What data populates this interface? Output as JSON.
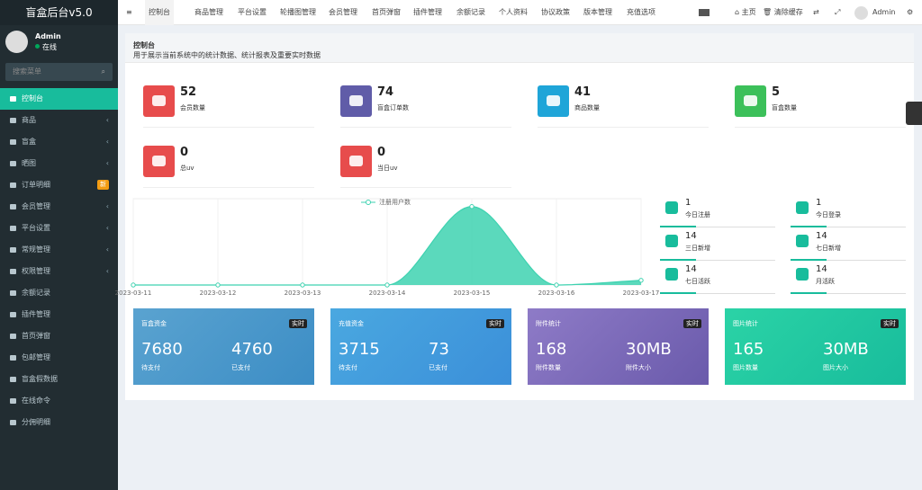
{
  "sidebar": {
    "logo": "盲盒后台v5.0",
    "user": {
      "name": "Admin",
      "status": "在线"
    },
    "search_placeholder": "搜索菜单",
    "menu": [
      {
        "label": "控制台"
      },
      {
        "label": "商品",
        "arrow": "‹"
      },
      {
        "label": "盲盒",
        "arrow": "‹"
      },
      {
        "label": "晒图",
        "arrow": "‹"
      },
      {
        "label": "订单明细",
        "badge": "新"
      },
      {
        "label": "会员管理",
        "arrow": "‹"
      },
      {
        "label": "平台设置",
        "arrow": "‹"
      },
      {
        "label": "常规管理",
        "arrow": "‹"
      },
      {
        "label": "权限管理",
        "arrow": "‹"
      },
      {
        "label": "余额记录"
      },
      {
        "label": "插件管理"
      },
      {
        "label": "首页弹窗"
      },
      {
        "label": "包邮管理"
      },
      {
        "label": "盲盒假数据"
      },
      {
        "label": "在线命令"
      },
      {
        "label": "分佣明细"
      }
    ]
  },
  "topnav": {
    "menu_icon": "≡",
    "tabs": [
      "控制台",
      "商品管理",
      "平台设置",
      "轮播图管理",
      "会员管理",
      "首页弹窗",
      "插件管理",
      "余额记录",
      "个人资料",
      "协议政策",
      "版本管理",
      "充值选项"
    ],
    "right": [
      "主页",
      "清除缓存",
      "Admin"
    ]
  },
  "page_header": {
    "title": "控制台",
    "subtitle": "用于展示当前系统中的统计数据、统计报表及重要实时数据"
  },
  "stats": [
    {
      "value": 52,
      "label": "会员数量",
      "color": "#e74c4c"
    },
    {
      "value": 74,
      "label": "盲盒订单数",
      "color": "#605ca8"
    },
    {
      "value": 41,
      "label": "商品数量",
      "color": "#1fa5d8"
    },
    {
      "value": 5,
      "label": "盲盒数量",
      "color": "#3cc05a"
    },
    {
      "value": 0,
      "label": "总uv",
      "color": "#e74c4c"
    },
    {
      "value": 0,
      "label": "当日uv",
      "color": "#e74c4c"
    }
  ],
  "chart_data": {
    "type": "line",
    "categories": [
      "2023-03-11",
      "2023-03-12",
      "2023-03-13",
      "2023-03-14",
      "2023-03-15",
      "2023-03-16",
      "2023-03-17"
    ],
    "series": [
      {
        "name": "注册用户数",
        "color": "#3ed2b0",
        "values": [
          0,
          0,
          0,
          0,
          1,
          0,
          0.06
        ]
      }
    ],
    "ylim": [
      0,
      1.1
    ]
  },
  "mini_stats": [
    {
      "value": 1,
      "label": "今日注册"
    },
    {
      "value": 1,
      "label": "今日登录"
    },
    {
      "value": 14,
      "label": "三日新增"
    },
    {
      "value": 14,
      "label": "七日新增"
    },
    {
      "value": 14,
      "label": "七日活跃"
    },
    {
      "value": 14,
      "label": "月活跃"
    }
  ],
  "cards": [
    {
      "title": "盲盒资金",
      "badge": "实时",
      "items": [
        {
          "value": 7680,
          "label": "待支付"
        },
        {
          "value": 4760,
          "label": "已支付"
        }
      ]
    },
    {
      "title": "充值资金",
      "badge": "实时",
      "items": [
        {
          "value": 3715,
          "label": "待支付"
        },
        {
          "value": 73,
          "label": "已支付"
        }
      ]
    },
    {
      "title": "附件统计",
      "badge": "实时",
      "items": [
        {
          "value": 168,
          "label": "附件数量"
        },
        {
          "value": "30MB",
          "label": "附件大小"
        }
      ]
    },
    {
      "title": "图片统计",
      "badge": "实时",
      "items": [
        {
          "value": 165,
          "label": "图片数量"
        },
        {
          "value": "30MB",
          "label": "图片大小"
        }
      ]
    }
  ]
}
